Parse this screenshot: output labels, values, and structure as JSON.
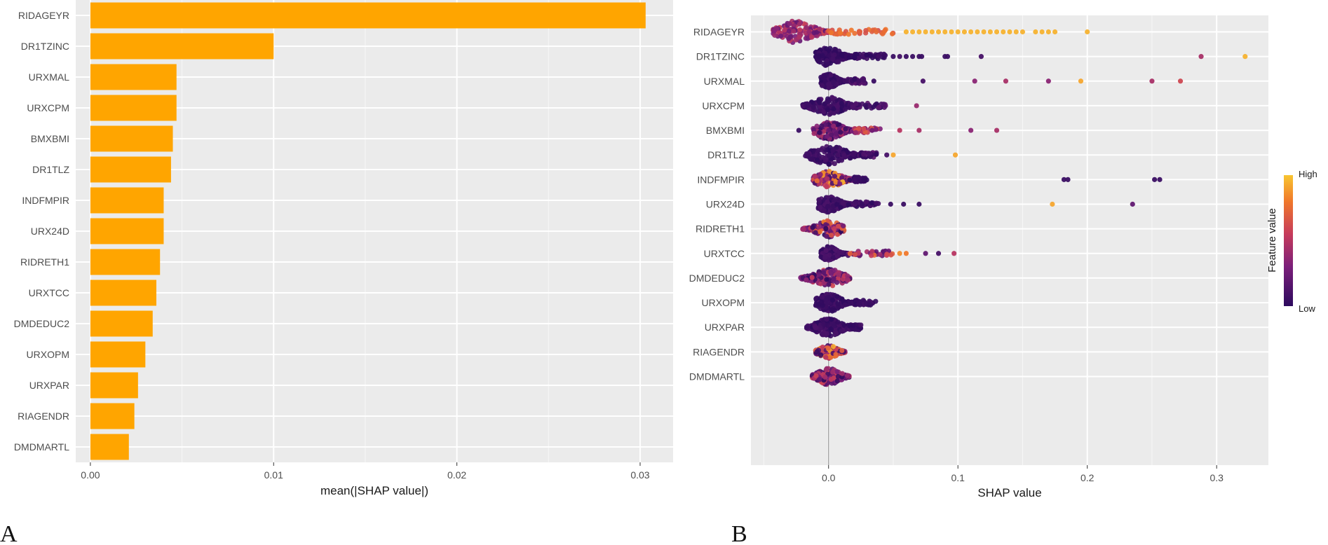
{
  "panels": {
    "a_label": "A",
    "b_label": "B"
  },
  "chart_data": [
    {
      "type": "bar",
      "orientation": "horizontal",
      "categories": [
        "RIDAGEYR",
        "DR1TZINC",
        "URXMAL",
        "URXCPM",
        "BMXBMI",
        "DR1TLZ",
        "INDFMPIR",
        "URX24D",
        "RIDRETH1",
        "URXTCC",
        "DMDEDUC2",
        "URXOPM",
        "URXPAR",
        "RIAGENDR",
        "DMDMARTL"
      ],
      "values": [
        0.0303,
        0.01,
        0.0047,
        0.0047,
        0.0045,
        0.0044,
        0.004,
        0.004,
        0.0038,
        0.0036,
        0.0034,
        0.003,
        0.0026,
        0.0024,
        0.0021
      ],
      "xlabel": "mean(|SHAP value|)",
      "ylabel": "",
      "xlim": [
        -0.0008,
        0.0318
      ],
      "xticks": [
        0,
        0.01,
        0.02,
        0.03
      ],
      "xtick_labels": [
        "0.00",
        "0.01",
        "0.02",
        "0.03"
      ],
      "bar_color": "#FFA500",
      "background": "#EBEBEB",
      "grid": true
    },
    {
      "type": "scatter",
      "subtype": "shap-beeswarm",
      "categories": [
        "RIDAGEYR",
        "DR1TZINC",
        "URXMAL",
        "URXCPM",
        "BMXBMI",
        "DR1TLZ",
        "INDFMPIR",
        "URX24D",
        "RIDRETH1",
        "URXTCC",
        "DMDEDUC2",
        "URXOPM",
        "URXPAR",
        "RIAGENDR",
        "DMDMARTL"
      ],
      "xlabel": "SHAP value",
      "xlim": [
        -0.06,
        0.34
      ],
      "xticks": [
        0,
        0.1,
        0.2,
        0.3
      ],
      "xtick_labels": [
        "0.0",
        "0.1",
        "0.2",
        "0.3"
      ],
      "legend": {
        "title": "Feature value",
        "high": "High",
        "low": "Low",
        "position": "right"
      },
      "color_low": "#3B0F70",
      "color_mid": "#E0612A",
      "color_high": "#F6C02B",
      "background": "#EBEBEB",
      "rows": [
        {
          "feature": "RIDAGEYR",
          "core_min": -0.043,
          "core_max": 0.0,
          "core_width": 0.95,
          "core_color_range": [
            0.2,
            0.6
          ],
          "tail_start": 0.0,
          "tail_end": 0.05,
          "tail_color_range": [
            0.6,
            0.8
          ],
          "outliers": [
            [
              0.06,
              0.95
            ],
            [
              0.065,
              0.95
            ],
            [
              0.07,
              0.95
            ],
            [
              0.075,
              0.95
            ],
            [
              0.08,
              0.95
            ],
            [
              0.085,
              0.95
            ],
            [
              0.09,
              0.95
            ],
            [
              0.095,
              0.95
            ],
            [
              0.1,
              0.95
            ],
            [
              0.105,
              0.95
            ],
            [
              0.11,
              0.95
            ],
            [
              0.115,
              0.95
            ],
            [
              0.12,
              0.95
            ],
            [
              0.125,
              0.95
            ],
            [
              0.13,
              0.95
            ],
            [
              0.135,
              0.95
            ],
            [
              0.14,
              0.95
            ],
            [
              0.145,
              0.95
            ],
            [
              0.15,
              0.95
            ],
            [
              0.16,
              0.95
            ],
            [
              0.165,
              0.95
            ],
            [
              0.17,
              0.95
            ],
            [
              0.175,
              0.95
            ],
            [
              0.2,
              0.95
            ]
          ]
        },
        {
          "feature": "DR1TZINC",
          "core_min": -0.01,
          "core_max": 0.02,
          "core_width": 0.8,
          "core_color_range": [
            0.0,
            0.08
          ],
          "tail_start": 0.02,
          "tail_end": 0.045,
          "tail_color_range": [
            0.0,
            0.1
          ],
          "outliers": [
            [
              0.05,
              0.05
            ],
            [
              0.055,
              0.08
            ],
            [
              0.06,
              0.05
            ],
            [
              0.065,
              0.05
            ],
            [
              0.07,
              0.05
            ],
            [
              0.072,
              0.05
            ],
            [
              0.09,
              0.05
            ],
            [
              0.092,
              0.05
            ],
            [
              0.118,
              0.1
            ],
            [
              0.288,
              0.45
            ],
            [
              0.322,
              0.95
            ]
          ]
        },
        {
          "feature": "URXMAL",
          "core_min": -0.006,
          "core_max": 0.015,
          "core_width": 0.6,
          "core_color_range": [
            0.0,
            0.1
          ],
          "tail_start": 0.015,
          "tail_end": 0.03,
          "tail_color_range": [
            0.0,
            0.2
          ],
          "outliers": [
            [
              0.035,
              0.05
            ],
            [
              0.073,
              0.1
            ],
            [
              0.113,
              0.35
            ],
            [
              0.137,
              0.45
            ],
            [
              0.17,
              0.35
            ],
            [
              0.195,
              0.92
            ],
            [
              0.25,
              0.45
            ],
            [
              0.272,
              0.6
            ]
          ]
        },
        {
          "feature": "URXCPM",
          "core_min": -0.02,
          "core_max": 0.018,
          "core_width": 0.75,
          "core_color_range": [
            0.0,
            0.12
          ],
          "tail_start": 0.018,
          "tail_end": 0.045,
          "tail_color_range": [
            0.0,
            0.2
          ],
          "outliers": [
            [
              0.068,
              0.4
            ]
          ]
        },
        {
          "feature": "BMXBMI",
          "core_min": -0.012,
          "core_max": 0.02,
          "core_width": 0.8,
          "core_color_range": [
            0.0,
            0.5
          ],
          "tail_start": 0.02,
          "tail_end": 0.04,
          "tail_color_range": [
            0.2,
            0.7
          ],
          "outliers": [
            [
              -0.023,
              0.05
            ],
            [
              0.055,
              0.5
            ],
            [
              0.07,
              0.45
            ],
            [
              0.11,
              0.35
            ],
            [
              0.13,
              0.45
            ]
          ]
        },
        {
          "feature": "DR1TLZ",
          "core_min": -0.018,
          "core_max": 0.025,
          "core_width": 0.8,
          "core_color_range": [
            0.0,
            0.12
          ],
          "tail_start": 0.025,
          "tail_end": 0.038,
          "tail_color_range": [
            0.0,
            0.2
          ],
          "outliers": [
            [
              0.045,
              0.1
            ],
            [
              0.05,
              0.92
            ],
            [
              0.098,
              0.92
            ]
          ]
        },
        {
          "feature": "INDFMPIR",
          "core_min": -0.012,
          "core_max": 0.02,
          "core_width": 0.7,
          "core_color_range": [
            0.0,
            0.95
          ],
          "tail_start": 0.02,
          "tail_end": 0.03,
          "tail_color_range": [
            0.0,
            0.1
          ],
          "outliers": [
            [
              0.182,
              0.05
            ],
            [
              0.185,
              0.05
            ],
            [
              0.252,
              0.05
            ],
            [
              0.256,
              0.05
            ]
          ]
        },
        {
          "feature": "URX24D",
          "core_min": -0.008,
          "core_max": 0.02,
          "core_width": 0.7,
          "core_color_range": [
            0.0,
            0.12
          ],
          "tail_start": 0.02,
          "tail_end": 0.04,
          "tail_color_range": [
            0.0,
            0.12
          ],
          "outliers": [
            [
              0.048,
              0.05
            ],
            [
              0.058,
              0.05
            ],
            [
              0.07,
              0.05
            ],
            [
              0.173,
              0.92
            ],
            [
              0.235,
              0.2
            ]
          ]
        },
        {
          "feature": "RIDRETH1",
          "core_min": -0.02,
          "core_max": 0.012,
          "core_width": 0.7,
          "core_color_range": [
            0.0,
            0.8
          ],
          "tail_start": 0.012,
          "tail_end": 0.012,
          "tail_color_range": [
            0.0,
            0.1
          ],
          "outliers": []
        },
        {
          "feature": "URXTCC",
          "core_min": -0.006,
          "core_max": 0.015,
          "core_width": 0.6,
          "core_color_range": [
            0.0,
            0.15
          ],
          "tail_start": 0.015,
          "tail_end": 0.05,
          "tail_color_range": [
            0.1,
            0.75
          ],
          "outliers": [
            [
              0.055,
              0.85
            ],
            [
              0.06,
              0.8
            ],
            [
              0.075,
              0.2
            ],
            [
              0.085,
              0.1
            ],
            [
              0.097,
              0.5
            ]
          ]
        },
        {
          "feature": "DMDEDUC2",
          "core_min": -0.022,
          "core_max": 0.017,
          "core_width": 0.75,
          "core_color_range": [
            0.0,
            0.6
          ],
          "tail_start": 0.017,
          "tail_end": 0.017,
          "tail_color_range": [
            0.0,
            0.1
          ],
          "outliers": []
        },
        {
          "feature": "URXOPM",
          "core_min": -0.01,
          "core_max": 0.02,
          "core_width": 0.8,
          "core_color_range": [
            0.0,
            0.1
          ],
          "tail_start": 0.02,
          "tail_end": 0.037,
          "tail_color_range": [
            0.0,
            0.12
          ],
          "outliers": []
        },
        {
          "feature": "URXPAR",
          "core_min": -0.017,
          "core_max": 0.016,
          "core_width": 0.75,
          "core_color_range": [
            0.0,
            0.12
          ],
          "tail_start": 0.016,
          "tail_end": 0.025,
          "tail_color_range": [
            0.0,
            0.1
          ],
          "outliers": []
        },
        {
          "feature": "RIAGENDR",
          "core_min": -0.01,
          "core_max": 0.013,
          "core_width": 0.55,
          "core_color_range": [
            0.0,
            0.95
          ],
          "tail_start": 0.013,
          "tail_end": 0.013,
          "tail_color_range": [
            0.0,
            0.1
          ],
          "outliers": []
        },
        {
          "feature": "DMDMARTL",
          "core_min": -0.013,
          "core_max": 0.016,
          "core_width": 0.7,
          "core_color_range": [
            0.0,
            0.6
          ],
          "tail_start": 0.016,
          "tail_end": 0.016,
          "tail_color_range": [
            0.0,
            0.1
          ],
          "outliers": []
        }
      ]
    }
  ]
}
